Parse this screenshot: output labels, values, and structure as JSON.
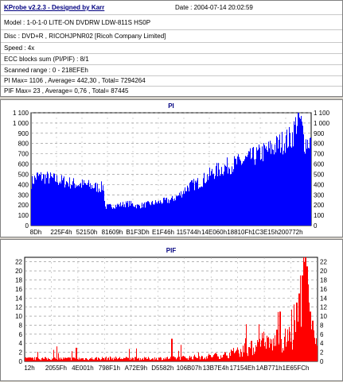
{
  "header": {
    "title": "KProbe v2.2.3 - Designed by Karr",
    "date": "Date : 2004-07-14 20:02:59"
  },
  "info_lines": [
    "Model : 1-0-1-0 LITE-ON DVDRW LDW-811S   HS0P",
    "Disc : DVD+R , RICOHJPNR02 [Ricoh Company Limited]",
    "Speed : 4x",
    "ECC blocks sum (PI/PIF) : 8/1",
    "Scanned range : 0 - 218EFEh",
    "PI Max= 1106 , Average= 442,30 , Total= 7294264",
    "PIF Max= 23 , Average= 0,76 , Total= 87445"
  ],
  "chart_data": [
    {
      "type": "area",
      "title": "PI",
      "color": "#0000ff",
      "ylim": [
        0,
        1100
      ],
      "yticks": [
        0,
        100,
        200,
        300,
        400,
        500,
        600,
        700,
        800,
        900,
        1000,
        1100
      ],
      "ytick_labels": [
        "0",
        "100",
        "200",
        "300",
        "400",
        "500",
        "600",
        "700",
        "800",
        "900",
        "1 000",
        "1 100"
      ],
      "xtick_labels": [
        "8Dh",
        "225F4h",
        "52150h",
        "81609h",
        "B1F3Dh",
        "E1F46h",
        "115744h",
        "14E060h",
        "18810Fh",
        "1C3E15h",
        "200772h"
      ],
      "grid": true,
      "profile": [
        [
          0,
          420
        ],
        [
          0.02,
          480
        ],
        [
          0.05,
          470
        ],
        [
          0.1,
          440
        ],
        [
          0.15,
          410
        ],
        [
          0.2,
          395
        ],
        [
          0.24,
          370
        ],
        [
          0.26,
          380
        ],
        [
          0.262,
          180
        ],
        [
          0.3,
          195
        ],
        [
          0.35,
          215
        ],
        [
          0.38,
          190
        ],
        [
          0.42,
          210
        ],
        [
          0.46,
          230
        ],
        [
          0.5,
          250
        ],
        [
          0.53,
          300
        ],
        [
          0.56,
          380
        ],
        [
          0.6,
          420
        ],
        [
          0.65,
          520
        ],
        [
          0.7,
          580
        ],
        [
          0.75,
          620
        ],
        [
          0.8,
          680
        ],
        [
          0.85,
          740
        ],
        [
          0.9,
          820
        ],
        [
          0.93,
          860
        ],
        [
          0.945,
          1000
        ],
        [
          0.955,
          1060
        ],
        [
          0.965,
          970
        ],
        [
          0.975,
          810
        ],
        [
          0.99,
          820
        ],
        [
          1.0,
          830
        ]
      ]
    },
    {
      "type": "area",
      "title": "PIF",
      "color": "#ff0000",
      "ylim": [
        0,
        23
      ],
      "yticks": [
        0,
        2,
        4,
        6,
        8,
        10,
        12,
        14,
        16,
        18,
        20,
        22
      ],
      "ytick_labels": [
        "0",
        "2",
        "4",
        "6",
        "8",
        "10",
        "12",
        "14",
        "16",
        "18",
        "20",
        "22"
      ],
      "xtick_labels": [
        "12h",
        "2055Fh",
        "4E001h",
        "798F1h",
        "A72E9h",
        "D5582h",
        "106B07h",
        "13B7E4h",
        "17154Eh",
        "1AB771h",
        "1E65FCh"
      ],
      "grid": true,
      "profile": [
        [
          0,
          0.6
        ],
        [
          0.1,
          0.6
        ],
        [
          0.2,
          0.6
        ],
        [
          0.3,
          0.7
        ],
        [
          0.4,
          0.6
        ],
        [
          0.5,
          0.7
        ],
        [
          0.6,
          1.0
        ],
        [
          0.65,
          1.2
        ],
        [
          0.7,
          1.6
        ],
        [
          0.75,
          2.5
        ],
        [
          0.8,
          3.4
        ],
        [
          0.85,
          4.0
        ],
        [
          0.88,
          4.5
        ],
        [
          0.9,
          5.0
        ],
        [
          0.92,
          6.0
        ],
        [
          0.94,
          8.0
        ],
        [
          0.95,
          10.0
        ],
        [
          0.96,
          13.0
        ],
        [
          0.97,
          8.0
        ],
        [
          0.98,
          5.0
        ],
        [
          1.0,
          3.0
        ]
      ],
      "spikes": [
        [
          0.175,
          3
        ],
        [
          0.5,
          5
        ],
        [
          0.86,
          7
        ],
        [
          0.87,
          11
        ],
        [
          0.928,
          13
        ],
        [
          0.935,
          15
        ],
        [
          0.948,
          19
        ],
        [
          0.952,
          21
        ],
        [
          0.956,
          22
        ],
        [
          0.959,
          23
        ],
        [
          0.962,
          21
        ],
        [
          0.966,
          17
        ],
        [
          0.97,
          13
        ],
        [
          0.975,
          11
        ],
        [
          0.982,
          9
        ]
      ]
    }
  ]
}
